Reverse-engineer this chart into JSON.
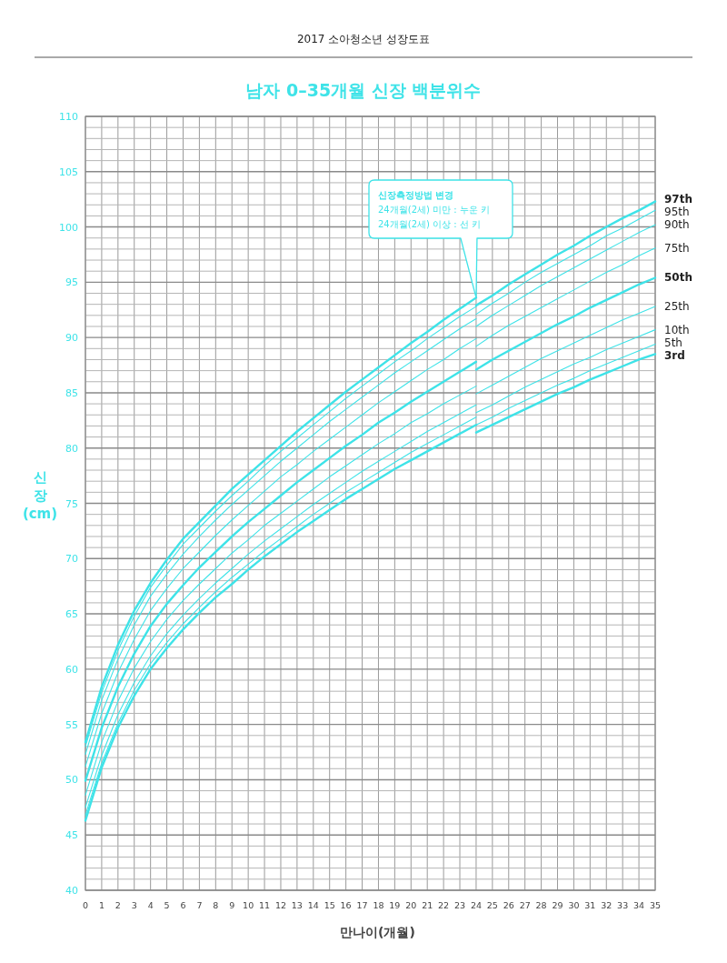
{
  "chart_data": {
    "type": "line",
    "subtitle": "2017 소아청소년 성장도표",
    "title": "남자 0–35개월 신장 백분위수",
    "xlabel": "만나이(개월)",
    "ylabel": "신장 (cm)",
    "xlim": [
      0,
      35
    ],
    "xticks": [
      0,
      1,
      2,
      3,
      4,
      5,
      6,
      7,
      8,
      9,
      10,
      11,
      12,
      13,
      14,
      15,
      16,
      17,
      18,
      19,
      20,
      21,
      22,
      23,
      24,
      25,
      26,
      27,
      28,
      29,
      30,
      31,
      32,
      33,
      34,
      35
    ],
    "ylim": [
      40,
      110
    ],
    "yticks": [
      40,
      {
        "value": 41,
        "label": null
      },
      {
        "value": 42,
        "label": null
      },
      {
        "value": 43,
        "label": null
      },
      {
        "value": 44,
        "label": null
      },
      45,
      {
        "value": 46,
        "label": null
      },
      {
        "value": 47,
        "label": null
      },
      {
        "value": 48,
        "label": null
      },
      {
        "value": 49,
        "label": null
      },
      50,
      {
        "value": 51,
        "label": null
      },
      {
        "value": 52,
        "label": null
      },
      {
        "value": 53,
        "label": null
      },
      {
        "value": 54,
        "label": null
      },
      55,
      {
        "value": 56,
        "label": null
      },
      {
        "value": 57,
        "label": null
      },
      {
        "value": 58,
        "label": null
      },
      {
        "value": 59,
        "label": null
      },
      60,
      {
        "value": 61,
        "label": null
      },
      {
        "value": 62,
        "label": null
      },
      {
        "value": 63,
        "label": null
      },
      {
        "value": 64,
        "label": null
      },
      65,
      {
        "value": 66,
        "label": null
      },
      {
        "value": 67,
        "label": null
      },
      {
        "value": 68,
        "label": null
      },
      {
        "value": 69,
        "label": null
      },
      70,
      {
        "value": 71,
        "label": null
      },
      {
        "value": 72,
        "label": null
      },
      {
        "value": 73,
        "label": null
      },
      {
        "value": 74,
        "label": null
      },
      75,
      {
        "value": 76,
        "label": null
      },
      {
        "value": 77,
        "label": null
      },
      {
        "value": 78,
        "label": null
      },
      {
        "value": 79,
        "label": null
      },
      80,
      {
        "value": 81,
        "label": null
      },
      {
        "value": 82,
        "label": null
      },
      {
        "value": 83,
        "label": null
      },
      {
        "value": 84,
        "label": null
      },
      85,
      {
        "value": 86,
        "label": null
      },
      {
        "value": 87,
        "label": null
      },
      {
        "value": 88,
        "label": null
      },
      {
        "value": 89,
        "label": null
      },
      90,
      {
        "value": 91,
        "label": null
      },
      {
        "value": 92,
        "label": null
      },
      {
        "value": 93,
        "label": null
      },
      {
        "value": 94,
        "label": null
      },
      95,
      {
        "value": 96,
        "label": null
      },
      {
        "value": 97,
        "label": null
      },
      {
        "value": 98,
        "label": null
      },
      {
        "value": 99,
        "label": null
      },
      100,
      {
        "value": 101,
        "label": null
      },
      {
        "value": 102,
        "label": null
      },
      {
        "value": 103,
        "label": null
      },
      {
        "value": 104,
        "label": null
      },
      105,
      {
        "value": 106,
        "label": null
      },
      {
        "value": 107,
        "label": null
      },
      {
        "value": 108,
        "label": null
      },
      {
        "value": 109,
        "label": null
      },
      110
    ],
    "grid": true,
    "marker": "none",
    "line_style": "solid",
    "annotations": [
      "신장측정방법 변경",
      "24개월(2세) 미만 : 누운 키",
      "24개월(2세) 이상 : 선 키"
    ],
    "series": [
      {
        "color": "#3ee3e8",
        "x": [
          0,
          1,
          2,
          3,
          4,
          5,
          6,
          7,
          8,
          9,
          10,
          11,
          12,
          13,
          14,
          15,
          16,
          17,
          18,
          19,
          20,
          21,
          22,
          23,
          24
        ],
        "values": [
          53.4,
          58.4,
          62.2,
          65.3,
          67.8,
          69.9,
          71.8,
          73.3,
          74.8,
          76.3,
          77.6,
          78.9,
          80.2,
          81.5,
          82.7,
          83.9,
          85.1,
          86.2,
          87.3,
          88.4,
          89.5,
          90.5,
          91.6,
          92.6,
          93.6
        ]
      },
      {
        "color": "#3ee3e8",
        "x": [
          0,
          1,
          2,
          3,
          4,
          5,
          6,
          7,
          8,
          9,
          10,
          11,
          12,
          13,
          14,
          15,
          16,
          17,
          18,
          19,
          20,
          21,
          22,
          23,
          24
        ],
        "values": [
          53.0,
          57.9,
          61.7,
          64.8,
          67.4,
          69.4,
          71.3,
          72.8,
          74.3,
          75.7,
          77.0,
          78.4,
          79.7,
          80.9,
          82.1,
          83.3,
          84.5,
          85.6,
          86.7,
          87.8,
          88.8,
          89.9,
          90.9,
          91.9,
          92.8
        ]
      },
      {
        "color": "#3ee3e8",
        "x": [
          0,
          1,
          2,
          3,
          4,
          5,
          6,
          7,
          8,
          9,
          10,
          11,
          12,
          13,
          14,
          15,
          16,
          17,
          18,
          19,
          20,
          21,
          22,
          23,
          24
        ],
        "values": [
          52.3,
          57.2,
          60.9,
          64.0,
          66.6,
          68.6,
          70.4,
          72.0,
          73.5,
          74.9,
          76.2,
          77.5,
          78.8,
          80.0,
          81.2,
          82.4,
          83.5,
          84.6,
          85.7,
          86.8,
          87.8,
          88.8,
          89.8,
          90.8,
          91.7
        ]
      },
      {
        "color": "#3ee3e8",
        "x": [
          0,
          1,
          2,
          3,
          4,
          5,
          6,
          7,
          8,
          9,
          10,
          11,
          12,
          13,
          14,
          15,
          16,
          17,
          18,
          19,
          20,
          21,
          22,
          23,
          24
        ],
        "values": [
          51.2,
          56.0,
          59.7,
          62.7,
          65.3,
          67.3,
          69.1,
          70.6,
          72.1,
          73.5,
          74.8,
          76.1,
          77.4,
          78.5,
          79.7,
          80.8,
          81.9,
          83.0,
          84.1,
          85.1,
          86.1,
          87.1,
          88.0,
          89.0,
          89.9
        ]
      },
      {
        "color": "#3ee3e8",
        "x": [
          0,
          1,
          2,
          3,
          4,
          5,
          6,
          7,
          8,
          9,
          10,
          11,
          12,
          13,
          14,
          15,
          16,
          17,
          18,
          19,
          20,
          21,
          22,
          23,
          24
        ],
        "values": [
          49.9,
          54.7,
          58.4,
          61.4,
          63.9,
          65.9,
          67.6,
          69.2,
          70.6,
          72.0,
          73.3,
          74.5,
          75.7,
          76.9,
          78.0,
          79.1,
          80.2,
          81.2,
          82.3,
          83.2,
          84.2,
          85.1,
          86.0,
          86.9,
          87.8
        ]
      },
      {
        "color": "#3ee3e8",
        "x": [
          0,
          1,
          2,
          3,
          4,
          5,
          6,
          7,
          8,
          9,
          10,
          11,
          12,
          13,
          14,
          15,
          16,
          17,
          18,
          19,
          20,
          21,
          22,
          23,
          24
        ],
        "values": [
          48.6,
          53.4,
          57.1,
          60.1,
          62.5,
          64.5,
          66.2,
          67.7,
          69.1,
          70.5,
          71.7,
          73.0,
          74.1,
          75.2,
          76.3,
          77.4,
          78.4,
          79.4,
          80.4,
          81.3,
          82.3,
          83.1,
          84.0,
          84.8,
          85.6
        ]
      },
      {
        "color": "#3ee3e8",
        "x": [
          0,
          1,
          2,
          3,
          4,
          5,
          6,
          7,
          8,
          9,
          10,
          11,
          12,
          13,
          14,
          15,
          16,
          17,
          18,
          19,
          20,
          21,
          22,
          23,
          24
        ],
        "values": [
          47.5,
          52.2,
          55.9,
          58.8,
          61.2,
          63.2,
          64.9,
          66.4,
          67.8,
          69.1,
          70.4,
          71.6,
          72.7,
          73.8,
          74.9,
          75.9,
          76.9,
          77.9,
          78.8,
          79.7,
          80.6,
          81.5,
          82.3,
          83.1,
          83.9
        ]
      },
      {
        "color": "#3ee3e8",
        "x": [
          0,
          1,
          2,
          3,
          4,
          5,
          6,
          7,
          8,
          9,
          10,
          11,
          12,
          13,
          14,
          15,
          16,
          17,
          18,
          19,
          20,
          21,
          22,
          23,
          24
        ],
        "values": [
          46.8,
          51.5,
          55.1,
          58.1,
          60.5,
          62.4,
          64.1,
          65.6,
          67.0,
          68.3,
          69.5,
          70.7,
          71.8,
          72.9,
          74.0,
          75.0,
          76.0,
          76.9,
          77.8,
          78.7,
          79.6,
          80.4,
          81.2,
          82.0,
          82.8
        ]
      },
      {
        "color": "#3ee3e8",
        "x": [
          0,
          1,
          2,
          3,
          4,
          5,
          6,
          7,
          8,
          9,
          10,
          11,
          12,
          13,
          14,
          15,
          16,
          17,
          18,
          19,
          20,
          21,
          22,
          23,
          24
        ],
        "values": [
          46.3,
          51.1,
          54.7,
          57.6,
          60.0,
          61.9,
          63.6,
          65.1,
          66.5,
          67.7,
          69.0,
          70.2,
          71.3,
          72.4,
          73.4,
          74.4,
          75.4,
          76.3,
          77.2,
          78.1,
          78.9,
          79.7,
          80.5,
          81.3,
          82.1
        ]
      },
      {
        "name": "97th",
        "color": "#3ee3e8",
        "x": [
          24,
          25,
          26,
          27,
          28,
          29,
          30,
          31,
          32,
          33,
          34,
          35
        ],
        "values": [
          92.9,
          93.8,
          94.8,
          95.7,
          96.6,
          97.5,
          98.3,
          99.2,
          100.0,
          100.8,
          101.5,
          102.3
        ]
      },
      {
        "name": "95th",
        "color": "#3ee3e8",
        "x": [
          24,
          25,
          26,
          27,
          28,
          29,
          30,
          31,
          32,
          33,
          34,
          35
        ],
        "values": [
          92.1,
          93.1,
          94.0,
          95.0,
          95.9,
          96.7,
          97.5,
          98.3,
          99.2,
          99.9,
          100.7,
          101.5
        ]
      },
      {
        "name": "90th",
        "color": "#3ee3e8",
        "x": [
          24,
          25,
          26,
          27,
          28,
          29,
          30,
          31,
          32,
          33,
          34,
          35
        ],
        "values": [
          91.0,
          92.0,
          92.9,
          93.8,
          94.7,
          95.5,
          96.3,
          97.1,
          97.9,
          98.7,
          99.5,
          100.2
        ]
      },
      {
        "name": "75th",
        "color": "#3ee3e8",
        "x": [
          24,
          25,
          26,
          27,
          28,
          29,
          30,
          31,
          32,
          33,
          34,
          35
        ],
        "values": [
          89.2,
          90.2,
          91.1,
          91.9,
          92.7,
          93.5,
          94.3,
          95.1,
          95.9,
          96.6,
          97.4,
          98.1
        ]
      },
      {
        "name": "50th",
        "color": "#3ee3e8",
        "x": [
          24,
          25,
          26,
          27,
          28,
          29,
          30,
          31,
          32,
          33,
          34,
          35
        ],
        "values": [
          87.1,
          88.0,
          88.8,
          89.6,
          90.4,
          91.2,
          91.9,
          92.7,
          93.4,
          94.1,
          94.8,
          95.4
        ]
      },
      {
        "name": "25th",
        "color": "#3ee3e8",
        "x": [
          24,
          25,
          26,
          27,
          28,
          29,
          30,
          31,
          32,
          33,
          34,
          35
        ],
        "values": [
          84.9,
          85.7,
          86.5,
          87.3,
          88.1,
          88.8,
          89.5,
          90.2,
          90.9,
          91.6,
          92.2,
          92.8
        ]
      },
      {
        "name": "10th",
        "color": "#3ee3e8",
        "x": [
          24,
          25,
          26,
          27,
          28,
          29,
          30,
          31,
          32,
          33,
          34,
          35
        ],
        "values": [
          83.2,
          83.9,
          84.7,
          85.5,
          86.2,
          86.9,
          87.6,
          88.2,
          88.9,
          89.5,
          90.1,
          90.7
        ]
      },
      {
        "name": "5th",
        "color": "#3ee3e8",
        "x": [
          24,
          25,
          26,
          27,
          28,
          29,
          30,
          31,
          32,
          33,
          34,
          35
        ],
        "values": [
          82.1,
          82.8,
          83.6,
          84.3,
          85.0,
          85.7,
          86.3,
          87.0,
          87.6,
          88.2,
          88.8,
          89.4
        ]
      },
      {
        "name": "3rd",
        "color": "#3ee3e8",
        "x": [
          24,
          25,
          26,
          27,
          28,
          29,
          30,
          31,
          32,
          33,
          34,
          35
        ],
        "values": [
          81.4,
          82.1,
          82.8,
          83.5,
          84.2,
          84.9,
          85.5,
          86.2,
          86.8,
          87.4,
          88.0,
          88.5
        ]
      }
    ]
  }
}
